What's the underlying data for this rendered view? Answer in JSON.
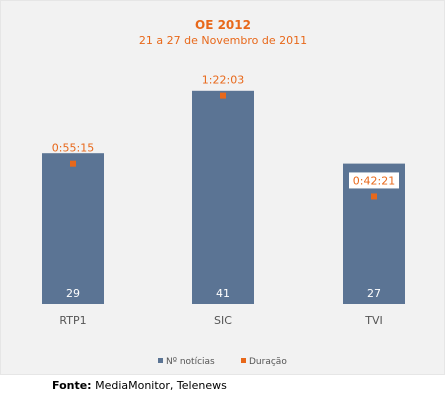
{
  "chart_data": {
    "type": "bar",
    "title": "OE 2012",
    "subtitle": "21 a 27 de Novembro de 2011",
    "categories": [
      "RTP1",
      "SIC",
      "TVI"
    ],
    "series": [
      {
        "name": "Nº notícias",
        "values": [
          29,
          41,
          27
        ],
        "color": "#5b7494",
        "axis": "left"
      },
      {
        "name": "Duração",
        "values": [
          "0:55:15",
          "1:22:03",
          "0:42:21"
        ],
        "seconds": [
          3315,
          4923,
          2541
        ],
        "color": "#e8681a",
        "axis": "right",
        "marker": "square"
      }
    ],
    "legend_position": "bottom",
    "grid": false
  },
  "source": {
    "label": "Fonte:",
    "text": "MediaMonitor, Telenews"
  },
  "colors": {
    "title": "#e8681a",
    "bar": "#5b7494",
    "marker": "#e8681a",
    "background": "#f2f2f2"
  }
}
